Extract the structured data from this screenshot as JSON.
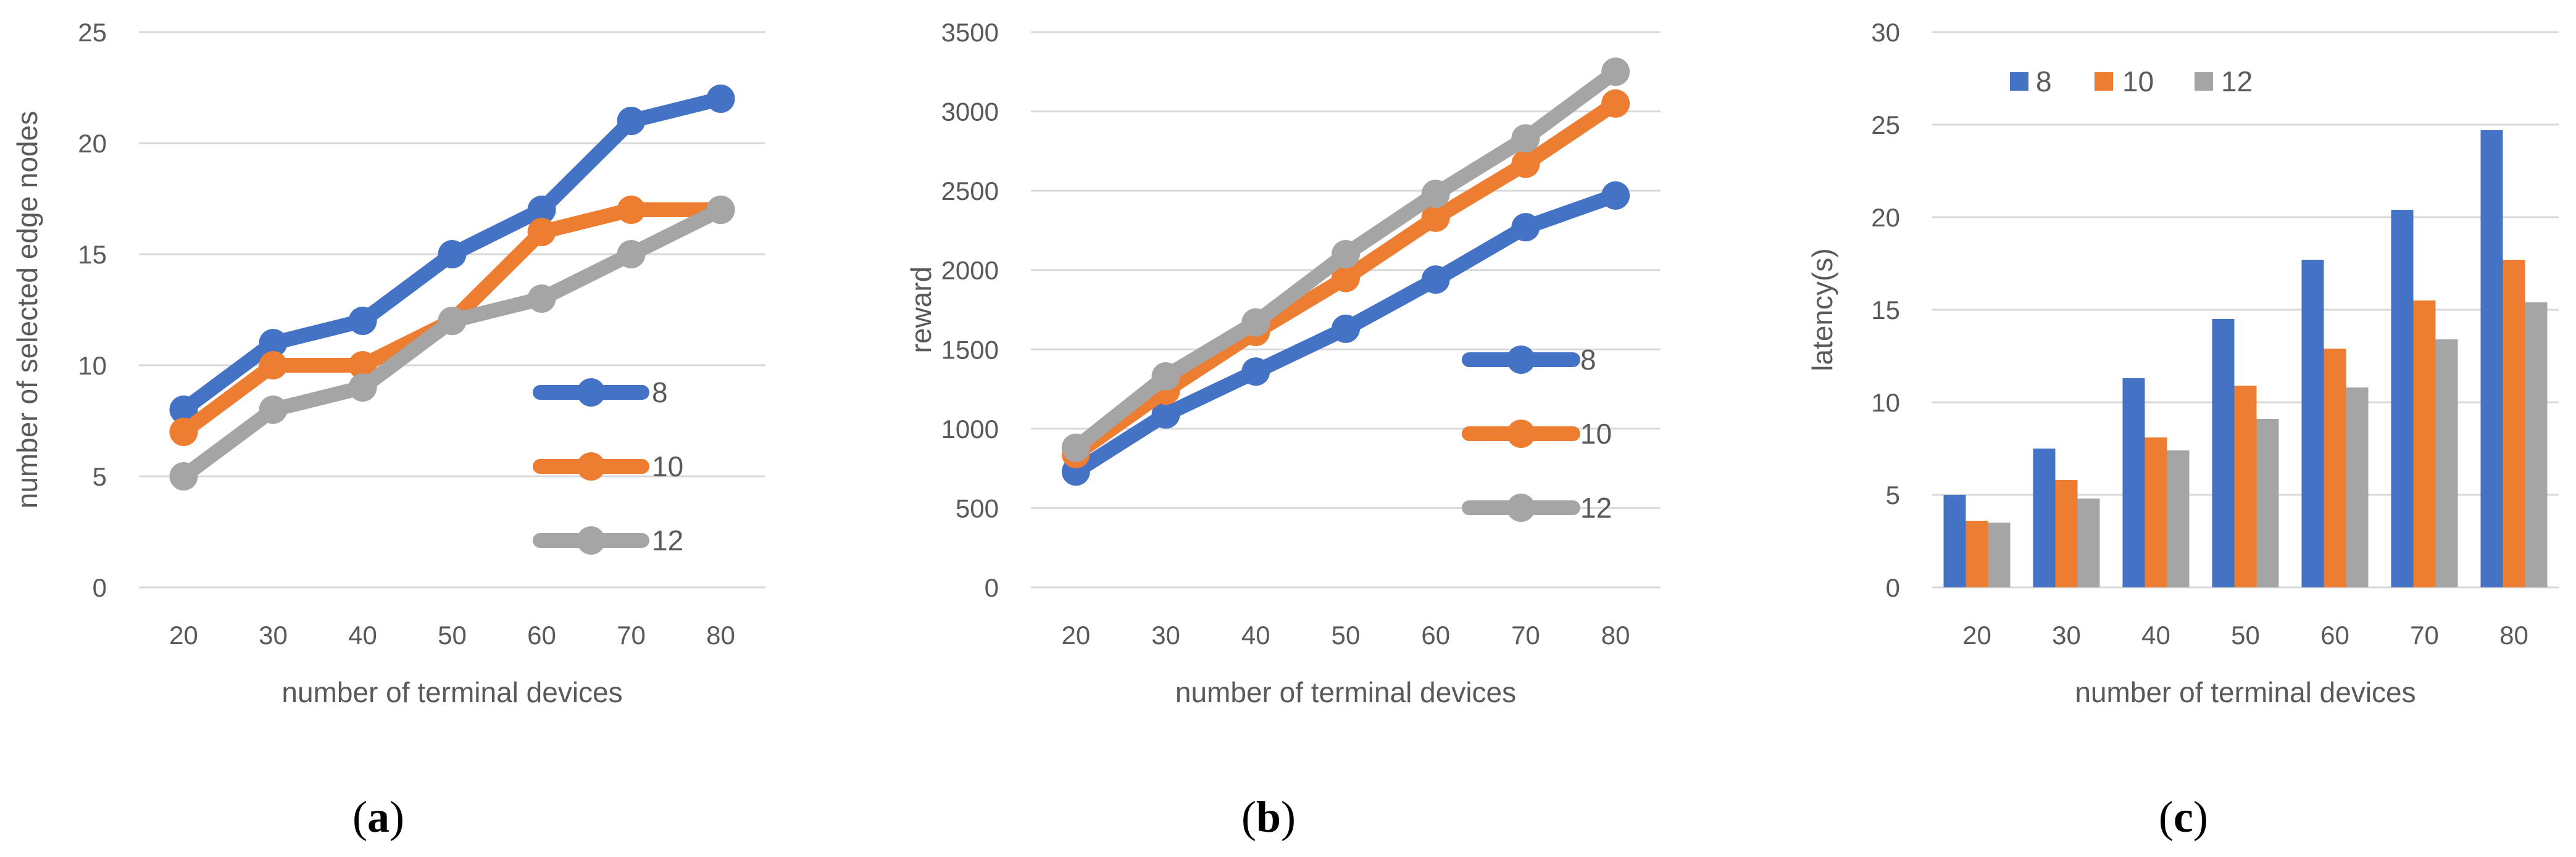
{
  "figure": {
    "colors": {
      "8": "#4472C4",
      "10": "#ED7D31",
      "12": "#A5A5A5",
      "grid": "#D9D9D9",
      "text": "#595959"
    },
    "panels": [
      {
        "label_letter": "a",
        "label_open": "(",
        "label_close": ")"
      },
      {
        "label_letter": "b",
        "label_open": "(",
        "label_close": ")"
      },
      {
        "label_letter": "c",
        "label_open": "(",
        "label_close": ")"
      }
    ]
  },
  "chart_data": [
    {
      "type": "line",
      "panel": "a",
      "title": "",
      "xlabel": "number of terminal devices",
      "ylabel": "number of selected edge nodes",
      "categories": [
        "20",
        "30",
        "40",
        "50",
        "60",
        "70",
        "80"
      ],
      "ylim": [
        0,
        25
      ],
      "yticks": [
        0,
        5,
        10,
        15,
        20,
        25
      ],
      "grid": true,
      "legend": "right",
      "series": [
        {
          "name": "8",
          "values": [
            8,
            11,
            12,
            15,
            17,
            21,
            22
          ]
        },
        {
          "name": "10",
          "values": [
            7,
            10,
            10,
            12,
            16,
            17,
            17
          ]
        },
        {
          "name": "12",
          "values": [
            5,
            8,
            9,
            12,
            13,
            15,
            17
          ]
        }
      ]
    },
    {
      "type": "line",
      "panel": "b",
      "title": "",
      "xlabel": "number of terminal devices",
      "ylabel": "reward",
      "categories": [
        "20",
        "30",
        "40",
        "50",
        "60",
        "70",
        "80"
      ],
      "ylim": [
        0,
        3500
      ],
      "yticks": [
        0,
        500,
        1000,
        1500,
        2000,
        2500,
        3000,
        3500
      ],
      "grid": true,
      "legend": "right",
      "series": [
        {
          "name": "8",
          "values": [
            730,
            1090,
            1360,
            1630,
            1940,
            2270,
            2470
          ]
        },
        {
          "name": "10",
          "values": [
            840,
            1240,
            1610,
            1950,
            2330,
            2670,
            3050
          ]
        },
        {
          "name": "12",
          "values": [
            880,
            1330,
            1670,
            2100,
            2480,
            2830,
            3250
          ]
        }
      ]
    },
    {
      "type": "bar",
      "panel": "c",
      "title": "",
      "xlabel": "number of terminal devices",
      "ylabel": "latency(s)",
      "categories": [
        "20",
        "30",
        "40",
        "50",
        "60",
        "70",
        "80"
      ],
      "ylim": [
        0,
        30
      ],
      "yticks": [
        0,
        5,
        10,
        15,
        20,
        25,
        30
      ],
      "grid": true,
      "legend": "top-left",
      "series": [
        {
          "name": "8",
          "values": [
            5.0,
            7.5,
            11.3,
            14.5,
            17.7,
            20.4,
            24.7
          ]
        },
        {
          "name": "10",
          "values": [
            3.6,
            5.8,
            8.1,
            10.9,
            12.9,
            15.5,
            17.7
          ]
        },
        {
          "name": "12",
          "values": [
            3.5,
            4.8,
            7.4,
            9.1,
            10.8,
            13.4,
            15.4
          ]
        }
      ]
    }
  ]
}
